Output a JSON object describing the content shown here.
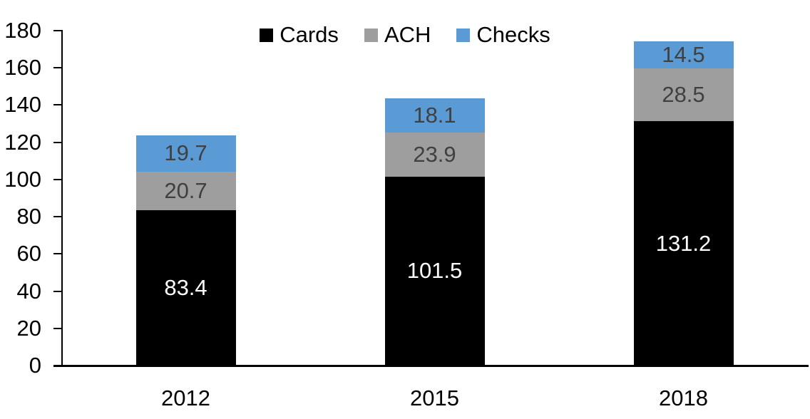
{
  "chart_data": {
    "type": "bar",
    "stacked": true,
    "title": "",
    "xlabel": "",
    "ylabel": "",
    "categories": [
      "2012",
      "2015",
      "2018"
    ],
    "series": [
      {
        "name": "Cards",
        "color": "#000000",
        "label_color": "#ffffff",
        "values": [
          83.4,
          101.5,
          131.2
        ]
      },
      {
        "name": "ACH",
        "color": "#9e9e9e",
        "label_color": "#404040",
        "values": [
          20.7,
          23.9,
          28.5
        ]
      },
      {
        "name": "Checks",
        "color": "#5b9bd5",
        "label_color": "#404040",
        "values": [
          19.7,
          18.1,
          14.5
        ]
      }
    ],
    "ylim": [
      0,
      180
    ],
    "yticks": [
      0,
      20,
      40,
      60,
      80,
      100,
      120,
      140,
      160,
      180
    ],
    "grid": false,
    "legend_position": "top-center",
    "legend_entries": [
      "Cards",
      "ACH",
      "Checks"
    ]
  }
}
